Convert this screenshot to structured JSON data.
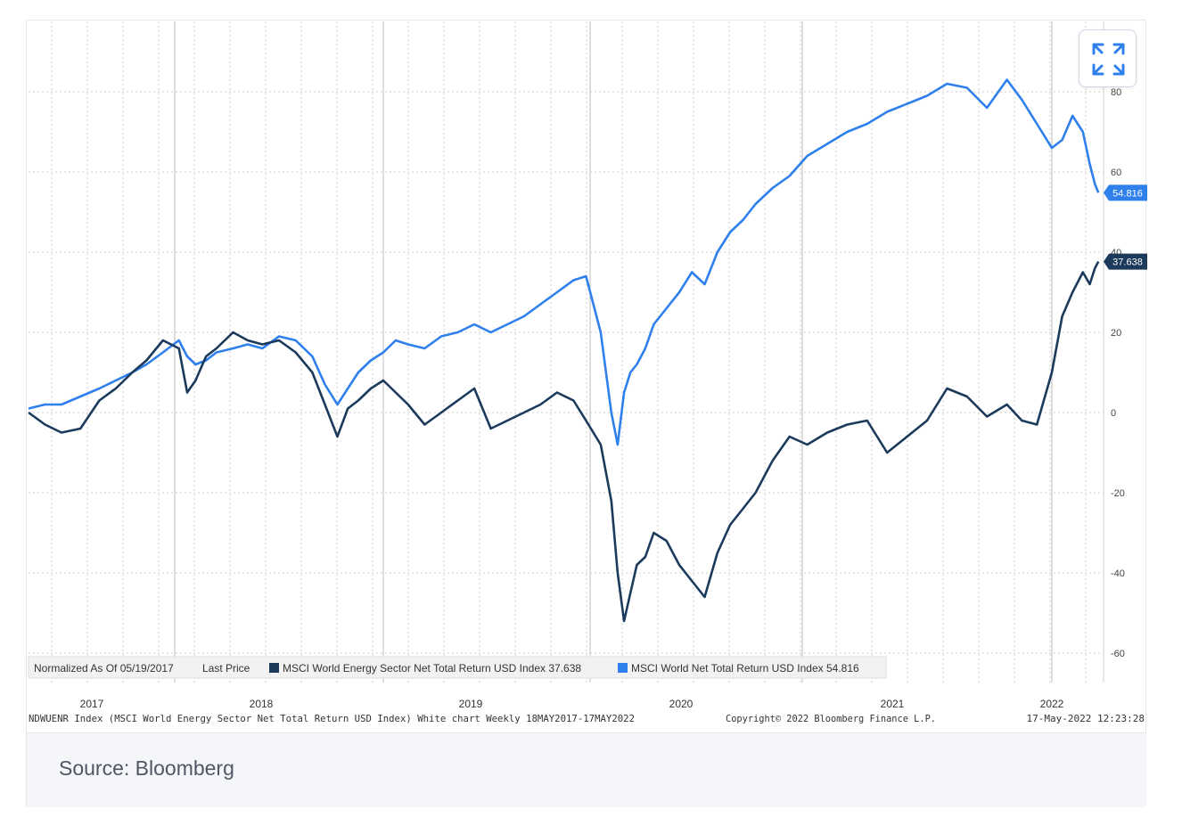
{
  "chart_data": {
    "type": "line",
    "title": "",
    "xlabel": "",
    "ylabel": "",
    "ylim": [
      -60,
      85
    ],
    "y_ticks": [
      "80",
      "60",
      "40",
      "20",
      "0",
      "-20",
      "-40",
      "-60"
    ],
    "x_tick_labels": [
      "2017",
      "2018",
      "2019",
      "2020",
      "2021",
      "2022"
    ],
    "grid": true,
    "legend_position": "bottom-left",
    "legend": {
      "normalized": "Normalized As Of 05/19/2017",
      "last_price": "Last Price",
      "energy": "MSCI World Energy Sector Net Total Return USD Index 37.638",
      "world": "MSCI World Net Total Return USD Index 54.816"
    },
    "series": [
      {
        "name": "MSCI World Energy Sector Net Total Return USD Index",
        "color": "#1b3a5c",
        "last_label": "37.638",
        "x": [
          2017.38,
          2017.45,
          2017.52,
          2017.6,
          2017.68,
          2017.75,
          2017.82,
          2017.88,
          2017.95,
          2018.02,
          2018.06,
          2018.1,
          2018.15,
          2018.2,
          2018.28,
          2018.35,
          2018.42,
          2018.5,
          2018.58,
          2018.66,
          2018.72,
          2018.78,
          2018.83,
          2018.88,
          2018.94,
          2019.0,
          2019.06,
          2019.12,
          2019.2,
          2019.28,
          2019.36,
          2019.44,
          2019.52,
          2019.6,
          2019.68,
          2019.76,
          2019.84,
          2019.92,
          2019.98,
          2020.05,
          2020.1,
          2020.13,
          2020.16,
          2020.19,
          2020.22,
          2020.26,
          2020.3,
          2020.36,
          2020.42,
          2020.48,
          2020.54,
          2020.6,
          2020.66,
          2020.72,
          2020.78,
          2020.86,
          2020.94,
          2021.02,
          2021.1,
          2021.18,
          2021.26,
          2021.34,
          2021.42,
          2021.5,
          2021.58,
          2021.66,
          2021.74,
          2021.82,
          2021.88,
          2021.94,
          2022.0,
          2022.06,
          2022.12,
          2022.18,
          2022.22,
          2022.25,
          2022.27
        ],
        "y": [
          0,
          -3,
          -5,
          -4,
          3,
          6,
          10,
          13,
          18,
          16,
          5,
          8,
          14,
          16,
          20,
          18,
          17,
          18,
          15,
          10,
          2,
          -6,
          1,
          3,
          6,
          8,
          5,
          2,
          -3,
          0,
          3,
          6,
          -4,
          -2,
          0,
          2,
          5,
          3,
          -2,
          -8,
          -22,
          -40,
          -52,
          -45,
          -38,
          -36,
          -30,
          -32,
          -38,
          -42,
          -46,
          -35,
          -28,
          -24,
          -20,
          -12,
          -6,
          -8,
          -5,
          -3,
          -2,
          -10,
          -6,
          -2,
          6,
          4,
          -1,
          2,
          -2,
          -3,
          10,
          24,
          30,
          35,
          32,
          36,
          37.638
        ]
      },
      {
        "name": "MSCI World Net Total Return USD Index",
        "color": "#2f80ed",
        "last_label": "54.816",
        "x": [
          2017.38,
          2017.45,
          2017.52,
          2017.6,
          2017.68,
          2017.75,
          2017.82,
          2017.88,
          2017.95,
          2018.02,
          2018.06,
          2018.1,
          2018.15,
          2018.2,
          2018.28,
          2018.35,
          2018.42,
          2018.5,
          2018.58,
          2018.66,
          2018.72,
          2018.78,
          2018.83,
          2018.88,
          2018.94,
          2019.0,
          2019.06,
          2019.12,
          2019.2,
          2019.28,
          2019.36,
          2019.44,
          2019.52,
          2019.6,
          2019.68,
          2019.76,
          2019.84,
          2019.92,
          2019.98,
          2020.05,
          2020.1,
          2020.13,
          2020.16,
          2020.19,
          2020.22,
          2020.26,
          2020.3,
          2020.36,
          2020.42,
          2020.48,
          2020.54,
          2020.6,
          2020.66,
          2020.72,
          2020.78,
          2020.86,
          2020.94,
          2021.02,
          2021.1,
          2021.18,
          2021.26,
          2021.34,
          2021.42,
          2021.5,
          2021.58,
          2021.66,
          2021.74,
          2021.82,
          2021.88,
          2021.94,
          2022.0,
          2022.06,
          2022.12,
          2022.18,
          2022.22,
          2022.25,
          2022.27
        ],
        "y": [
          1,
          2,
          2,
          4,
          6,
          8,
          10,
          12,
          15,
          18,
          14,
          12,
          13,
          15,
          16,
          17,
          16,
          19,
          18,
          14,
          7,
          2,
          6,
          10,
          13,
          15,
          18,
          17,
          16,
          19,
          20,
          22,
          20,
          22,
          24,
          27,
          30,
          33,
          34,
          20,
          0,
          -8,
          5,
          10,
          12,
          16,
          22,
          26,
          30,
          35,
          32,
          40,
          45,
          48,
          52,
          56,
          59,
          64,
          67,
          70,
          72,
          75,
          77,
          79,
          82,
          81,
          76,
          83,
          78,
          72,
          66,
          68,
          74,
          70,
          62,
          57,
          54.816
        ]
      }
    ]
  },
  "footer": {
    "source_line": "NDWUENR Index (MSCI World Energy Sector Net Total Return USD Index) White chart  Weekly 18MAY2017-17MAY2022",
    "copyright": "Copyright© 2022 Bloomberg Finance L.P.",
    "timestamp": "17-May-2022 12:23:28"
  },
  "caption": "Source: Bloomberg",
  "expand_icon": "expand-arrows-icon"
}
